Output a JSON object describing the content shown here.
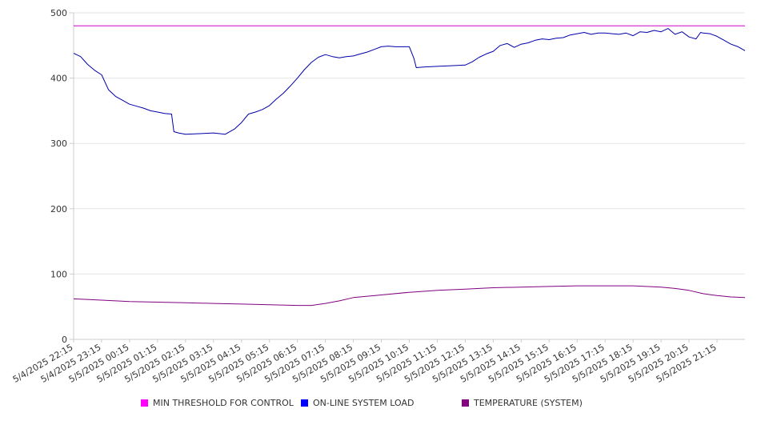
{
  "chart_data": {
    "type": "line",
    "title": "",
    "xlabel": "",
    "ylabel": "",
    "ylim": [
      0,
      500
    ],
    "yticks": [
      0,
      100,
      200,
      300,
      400,
      500
    ],
    "grid": "horizontal",
    "legend_position": "bottom",
    "x_start": "5/4/2025 22:15",
    "x_end": "5/5/2025 22:15",
    "xtick_labels": [
      "5/4/2025 22:15",
      "5/4/2025 23:15",
      "5/5/2025 00:15",
      "5/5/2025 01:15",
      "5/5/2025 02:15",
      "5/5/2025 03:15",
      "5/5/2025 04:15",
      "5/5/2025 05:15",
      "5/5/2025 06:15",
      "5/5/2025 07:15",
      "5/5/2025 08:15",
      "5/5/2025 09:15",
      "5/5/2025 10:15",
      "5/5/2025 11:15",
      "5/5/2025 12:15",
      "5/5/2025 13:15",
      "5/5/2025 14:15",
      "5/5/2025 15:15",
      "5/5/2025 16:15",
      "5/5/2025 17:15",
      "5/5/2025 18:15",
      "5/5/2025 19:15",
      "5/5/2025 20:15",
      "5/5/2025 21:15"
    ],
    "series": [
      {
        "name": "MIN THRESHOLD FOR CONTROL",
        "color": "#cc00cc",
        "legend_color": "#ff00ff",
        "points": [
          [
            "5/4/2025 22:15",
            480
          ],
          [
            "5/5/2025 22:15",
            480
          ]
        ]
      },
      {
        "name": "ON-LINE SYSTEM LOAD",
        "color": "#0000aa",
        "legend_color": "#0000ff",
        "points": [
          [
            "5/4/2025 22:15",
            438
          ],
          [
            "5/4/2025 22:30",
            433
          ],
          [
            "5/4/2025 22:45",
            421
          ],
          [
            "5/4/2025 23:00",
            412
          ],
          [
            "5/4/2025 23:15",
            405
          ],
          [
            "5/4/2025 23:30",
            382
          ],
          [
            "5/4/2025 23:45",
            372
          ],
          [
            "5/5/2025 00:00",
            366
          ],
          [
            "5/5/2025 00:15",
            360
          ],
          [
            "5/5/2025 00:30",
            357
          ],
          [
            "5/5/2025 00:45",
            354
          ],
          [
            "5/5/2025 01:00",
            350
          ],
          [
            "5/5/2025 01:15",
            348
          ],
          [
            "5/5/2025 01:30",
            346
          ],
          [
            "5/5/2025 01:45",
            345
          ],
          [
            "5/5/2025 01:50",
            318
          ],
          [
            "5/5/2025 02:00",
            316
          ],
          [
            "5/5/2025 02:15",
            314
          ],
          [
            "5/5/2025 02:45",
            315
          ],
          [
            "5/5/2025 03:15",
            316
          ],
          [
            "5/5/2025 03:40",
            314
          ],
          [
            "5/5/2025 04:00",
            322
          ],
          [
            "5/5/2025 04:15",
            332
          ],
          [
            "5/5/2025 04:30",
            345
          ],
          [
            "5/5/2025 04:45",
            348
          ],
          [
            "5/5/2025 05:00",
            352
          ],
          [
            "5/5/2025 05:15",
            358
          ],
          [
            "5/5/2025 05:30",
            368
          ],
          [
            "5/5/2025 05:45",
            377
          ],
          [
            "5/5/2025 06:00",
            388
          ],
          [
            "5/5/2025 06:15",
            400
          ],
          [
            "5/5/2025 06:30",
            413
          ],
          [
            "5/5/2025 06:45",
            424
          ],
          [
            "5/5/2025 07:00",
            432
          ],
          [
            "5/5/2025 07:15",
            436
          ],
          [
            "5/5/2025 07:30",
            433
          ],
          [
            "5/5/2025 07:45",
            431
          ],
          [
            "5/5/2025 08:00",
            433
          ],
          [
            "5/5/2025 08:15",
            434
          ],
          [
            "5/5/2025 08:30",
            437
          ],
          [
            "5/5/2025 08:45",
            440
          ],
          [
            "5/5/2025 09:00",
            444
          ],
          [
            "5/5/2025 09:15",
            448
          ],
          [
            "5/5/2025 09:30",
            449
          ],
          [
            "5/5/2025 09:45",
            448
          ],
          [
            "5/5/2025 10:00",
            448
          ],
          [
            "5/5/2025 10:15",
            448
          ],
          [
            "5/5/2025 10:25",
            430
          ],
          [
            "5/5/2025 10:30",
            416
          ],
          [
            "5/5/2025 10:45",
            417
          ],
          [
            "5/5/2025 11:15",
            418
          ],
          [
            "5/5/2025 11:45",
            419
          ],
          [
            "5/5/2025 12:15",
            420
          ],
          [
            "5/5/2025 12:30",
            425
          ],
          [
            "5/5/2025 12:45",
            432
          ],
          [
            "5/5/2025 13:00",
            437
          ],
          [
            "5/5/2025 13:15",
            441
          ],
          [
            "5/5/2025 13:30",
            450
          ],
          [
            "5/5/2025 13:45",
            453
          ],
          [
            "5/5/2025 14:00",
            447
          ],
          [
            "5/5/2025 14:15",
            452
          ],
          [
            "5/5/2025 14:30",
            454
          ],
          [
            "5/5/2025 14:45",
            458
          ],
          [
            "5/5/2025 15:00",
            460
          ],
          [
            "5/5/2025 15:15",
            459
          ],
          [
            "5/5/2025 15:30",
            461
          ],
          [
            "5/5/2025 15:45",
            462
          ],
          [
            "5/5/2025 16:00",
            466
          ],
          [
            "5/5/2025 16:15",
            468
          ],
          [
            "5/5/2025 16:30",
            470
          ],
          [
            "5/5/2025 16:45",
            467
          ],
          [
            "5/5/2025 17:00",
            469
          ],
          [
            "5/5/2025 17:15",
            469
          ],
          [
            "5/5/2025 17:30",
            468
          ],
          [
            "5/5/2025 17:45",
            467
          ],
          [
            "5/5/2025 18:00",
            469
          ],
          [
            "5/5/2025 18:15",
            465
          ],
          [
            "5/5/2025 18:30",
            471
          ],
          [
            "5/5/2025 18:45",
            470
          ],
          [
            "5/5/2025 19:00",
            473
          ],
          [
            "5/5/2025 19:15",
            471
          ],
          [
            "5/5/2025 19:30",
            476
          ],
          [
            "5/5/2025 19:45",
            467
          ],
          [
            "5/5/2025 20:00",
            471
          ],
          [
            "5/5/2025 20:15",
            463
          ],
          [
            "5/5/2025 20:30",
            460
          ],
          [
            "5/5/2025 20:40",
            470
          ],
          [
            "5/5/2025 20:45",
            469
          ],
          [
            "5/5/2025 21:00",
            468
          ],
          [
            "5/5/2025 21:15",
            464
          ],
          [
            "5/5/2025 21:30",
            458
          ],
          [
            "5/5/2025 21:45",
            452
          ],
          [
            "5/5/2025 22:00",
            448
          ],
          [
            "5/5/2025 22:15",
            442
          ]
        ]
      },
      {
        "name": "TEMPERATURE (SYSTEM)",
        "color": "#800080",
        "legend_color": "#800080",
        "points": [
          [
            "5/4/2025 22:15",
            62
          ],
          [
            "5/4/2025 23:15",
            60
          ],
          [
            "5/5/2025 00:15",
            58
          ],
          [
            "5/5/2025 01:15",
            57
          ],
          [
            "5/5/2025 02:15",
            56
          ],
          [
            "5/5/2025 03:15",
            55
          ],
          [
            "5/5/2025 04:15",
            54
          ],
          [
            "5/5/2025 05:15",
            53
          ],
          [
            "5/5/2025 06:15",
            52
          ],
          [
            "5/5/2025 06:45",
            52
          ],
          [
            "5/5/2025 07:15",
            55
          ],
          [
            "5/5/2025 07:45",
            59
          ],
          [
            "5/5/2025 08:15",
            64
          ],
          [
            "5/5/2025 09:15",
            68
          ],
          [
            "5/5/2025 10:15",
            72
          ],
          [
            "5/5/2025 11:15",
            75
          ],
          [
            "5/5/2025 12:15",
            77
          ],
          [
            "5/5/2025 13:15",
            79
          ],
          [
            "5/5/2025 14:15",
            80
          ],
          [
            "5/5/2025 15:15",
            81
          ],
          [
            "5/5/2025 16:15",
            82
          ],
          [
            "5/5/2025 17:15",
            82
          ],
          [
            "5/5/2025 18:15",
            82
          ],
          [
            "5/5/2025 19:15",
            80
          ],
          [
            "5/5/2025 19:45",
            78
          ],
          [
            "5/5/2025 20:15",
            75
          ],
          [
            "5/5/2025 20:45",
            70
          ],
          [
            "5/5/2025 21:15",
            67
          ],
          [
            "5/5/2025 21:45",
            65
          ],
          [
            "5/5/2025 22:15",
            64
          ]
        ]
      }
    ]
  }
}
